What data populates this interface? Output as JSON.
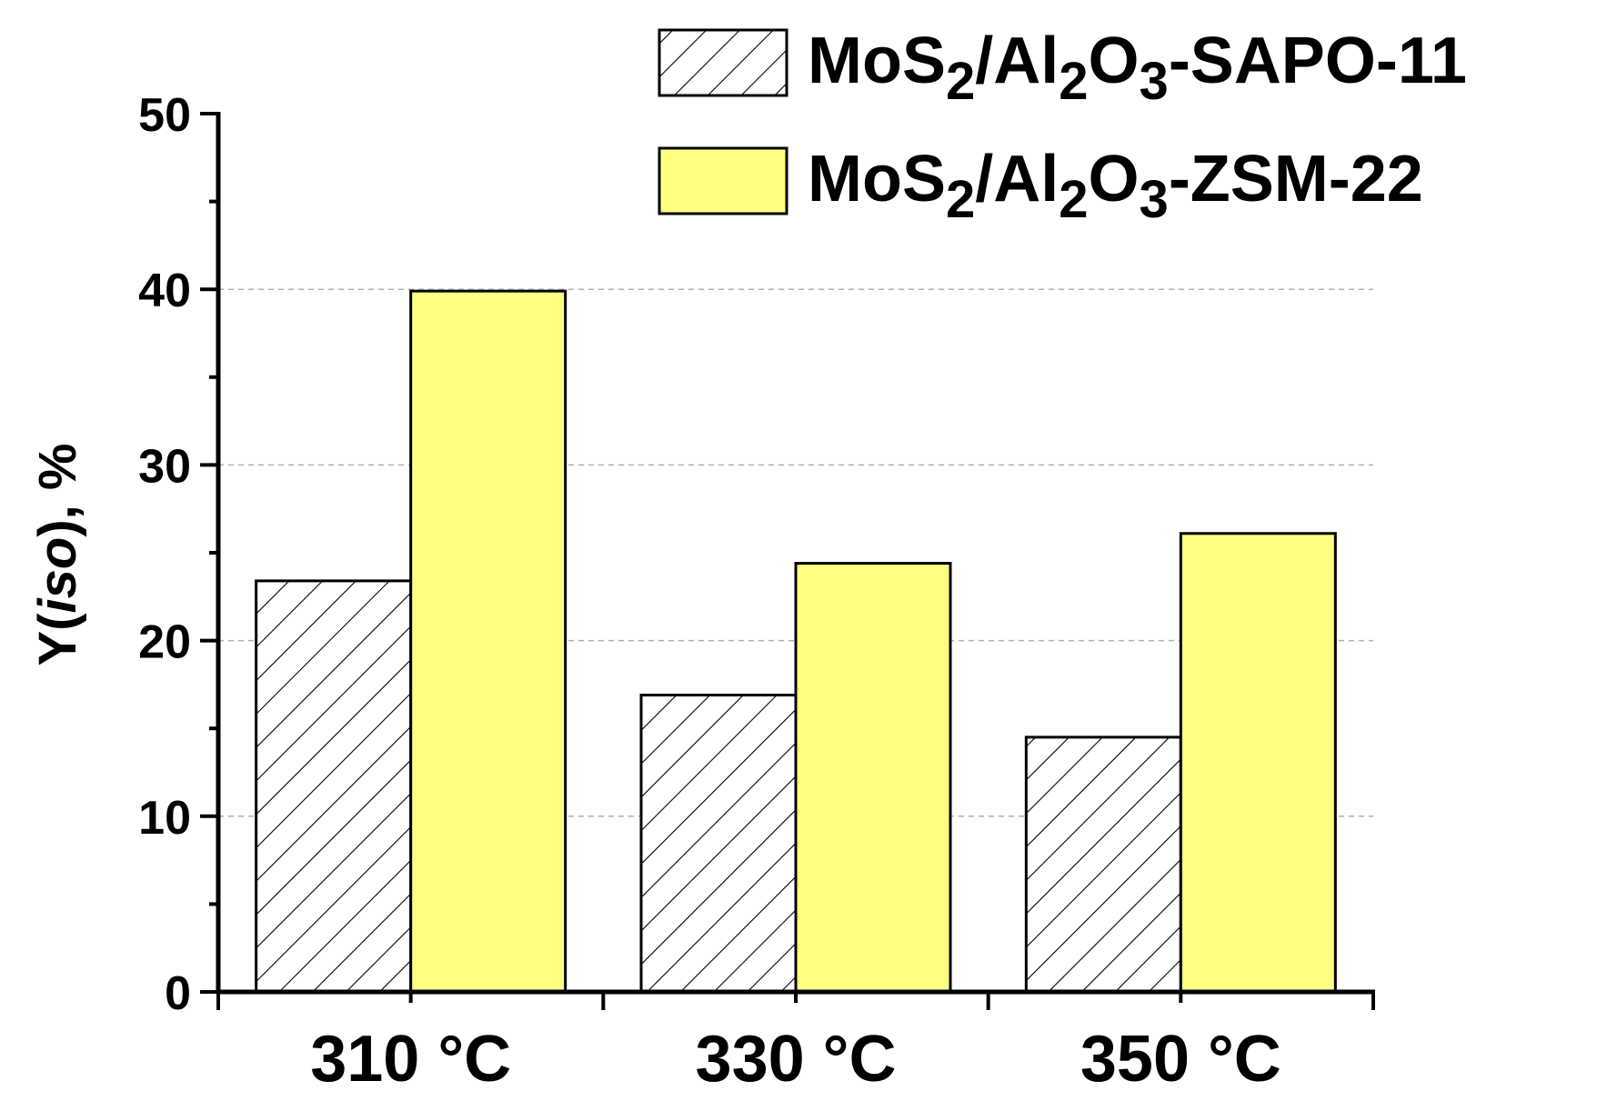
{
  "chart_data": {
    "type": "bar",
    "categories": [
      "310 °C",
      "330 °C",
      "350 °C"
    ],
    "series": [
      {
        "name": "MoS2/Al2O3-SAPO-11",
        "name_parts": {
          "a": "MoS",
          "sub1": "2",
          "b": "/Al",
          "sub2": "2",
          "c": "O",
          "sub3": "3",
          "d": "-SAPO-11"
        },
        "values": [
          23.4,
          16.9,
          14.5
        ],
        "fill": "#ffffff",
        "pattern": "diagonal-hatch"
      },
      {
        "name": "MoS2/Al2O3-ZSM-22",
        "name_parts": {
          "a": "MoS",
          "sub1": "2",
          "b": "/Al",
          "sub2": "2",
          "c": "O",
          "sub3": "3",
          "d": "-ZSM-22"
        },
        "values": [
          39.9,
          24.4,
          26.1
        ],
        "fill": "#ffff80",
        "pattern": "solid"
      }
    ],
    "ylabel_parts": {
      "pre": "Y(",
      "italic": "iso",
      "post": "), %"
    },
    "ylim": [
      0,
      50
    ],
    "yticks": [
      "0",
      "10",
      "20",
      "30",
      "40",
      "50"
    ],
    "grid": "horizontal dashed",
    "legend_position": "top-right"
  }
}
